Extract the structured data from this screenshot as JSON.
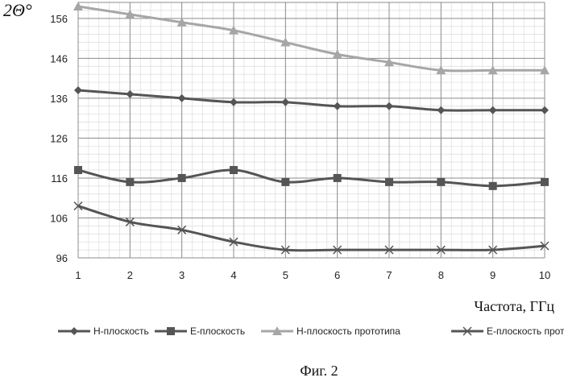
{
  "figure_caption": "Фиг. 2",
  "chart_data": {
    "type": "line",
    "ylabel": "2Θ°",
    "xlabel": "Частота, ГГц",
    "x": [
      1,
      2,
      3,
      4,
      5,
      6,
      7,
      8,
      9,
      10
    ],
    "xlim": [
      1,
      10
    ],
    "ylim": [
      96,
      160
    ],
    "yticks": [
      96,
      106,
      116,
      126,
      136,
      146,
      156
    ],
    "grid": true,
    "legend_position": "bottom",
    "series": [
      {
        "name": "Н-плоскость",
        "marker": "diamond",
        "color": "#555555",
        "values": [
          138,
          137,
          136,
          135,
          135,
          134,
          134,
          133,
          133,
          133
        ]
      },
      {
        "name": "Е-плоскость",
        "marker": "square",
        "color": "#555555",
        "values": [
          118,
          115,
          116,
          118,
          115,
          116,
          115,
          115,
          114,
          115
        ]
      },
      {
        "name": "Н-плоскость прототипа",
        "marker": "triangle",
        "color": "#a6a6a6",
        "values": [
          159,
          157,
          155,
          153,
          150,
          147,
          145,
          143,
          143,
          143
        ]
      },
      {
        "name": "Е-плоскость прототипа",
        "marker": "x",
        "color": "#555555",
        "values": [
          109,
          105,
          103,
          100,
          98,
          98,
          98,
          98,
          98,
          99
        ]
      }
    ]
  }
}
